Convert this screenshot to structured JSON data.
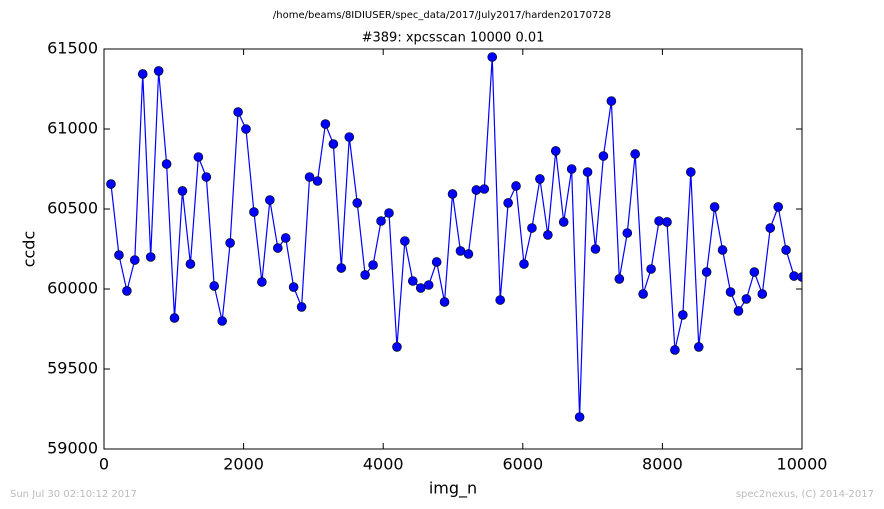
{
  "chart_data": {
    "type": "line",
    "suptitle": "/home/beams/8IDIUSER/spec_data/2017/July2017/harden20170728",
    "title": "#389: xpcsscan 10000 0.01",
    "x_label": "img_n",
    "y_label": "ccdc",
    "timestamp": "Sun Jul 30 02:10:12 2017",
    "credit": "spec2nexus, (C) 2014-2017",
    "x": [
      100,
      214,
      328,
      441,
      555,
      669,
      783,
      897,
      1010,
      1124,
      1238,
      1352,
      1466,
      1579,
      1693,
      1807,
      1921,
      2034,
      2148,
      2262,
      2376,
      2490,
      2603,
      2717,
      2831,
      2945,
      3059,
      3172,
      3286,
      3400,
      3514,
      3628,
      3741,
      3855,
      3969,
      4083,
      4197,
      4310,
      4424,
      4538,
      4652,
      4766,
      4879,
      4993,
      5107,
      5221,
      5334,
      5448,
      5562,
      5676,
      5790,
      5903,
      6017,
      6131,
      6245,
      6359,
      6472,
      6586,
      6700,
      6814,
      6928,
      7041,
      7155,
      7269,
      7383,
      7497,
      7610,
      7724,
      7838,
      7952,
      8066,
      8179,
      8293,
      8407,
      8521,
      8634,
      8748,
      8862,
      8976,
      9090,
      9203,
      9317,
      9431,
      9545,
      9659,
      9772,
      9886,
      10000
    ],
    "series": [
      {
        "color": "#0000ff",
        "values": [
          60656,
          60212,
          59988,
          60181,
          61344,
          60200,
          61363,
          60781,
          59819,
          60613,
          60156,
          60825,
          60700,
          60019,
          59800,
          60288,
          61106,
          61000,
          60481,
          60044,
          60556,
          60256,
          60319,
          60012,
          59888,
          60700,
          60675,
          61031,
          60906,
          60131,
          60950,
          60538,
          60088,
          60150,
          60425,
          60475,
          59638,
          60300,
          60050,
          60006,
          60025,
          60169,
          59919,
          60594,
          60238,
          60219,
          60619,
          60625,
          61450,
          59931,
          60538,
          60644,
          60156,
          60381,
          60688,
          60338,
          60863,
          60419,
          60750,
          59200,
          60731,
          60250,
          60831,
          61175,
          60063,
          60350,
          60844,
          59969,
          60125,
          60425,
          60419,
          59619,
          59838,
          60731,
          59638,
          60106,
          60513,
          60244,
          59981,
          59863,
          59938,
          60106,
          59969,
          60381,
          60513,
          60244,
          60081,
          60075
        ]
      }
    ],
    "xlim": [
      0,
      10000
    ],
    "ylim": [
      59000,
      61500
    ],
    "xticks": [
      0,
      2000,
      4000,
      6000,
      8000,
      10000
    ],
    "yticks": [
      59000,
      59500,
      60000,
      60500,
      61000,
      61500
    ],
    "grid": false
  }
}
